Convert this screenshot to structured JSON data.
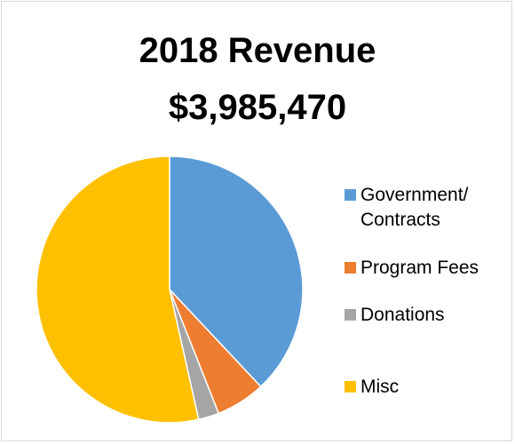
{
  "chart_data": {
    "type": "pie",
    "title": "2018 Revenue",
    "subtitle": "$3,985,470",
    "categories": [
      "Government/ Contracts",
      "Program Fees",
      "Donations",
      "Misc"
    ],
    "values": [
      38,
      6,
      2.5,
      53.5
    ],
    "unit": "percent of total (estimated)",
    "colors": [
      "#5b9bd5",
      "#ed7d31",
      "#a5a5a5",
      "#ffc000"
    ],
    "legend_position": "right",
    "start_angle_deg": 0,
    "direction": "clockwise"
  }
}
